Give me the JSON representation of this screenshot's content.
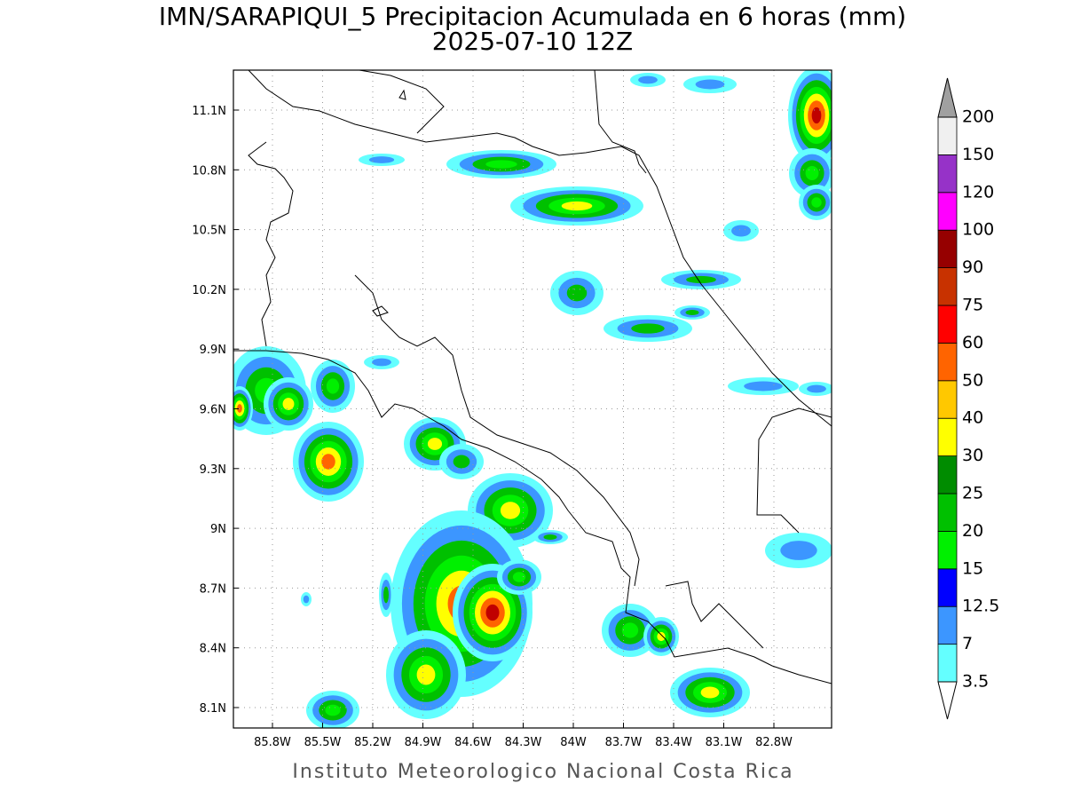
{
  "header": {
    "title": "IMN/SARAPIQUI_5 Precipitacion Acumulada en 6 horas (mm)",
    "subtitle": "2025-07-10 12Z"
  },
  "map": {
    "lon_labels": [
      "85.8W",
      "85.5W",
      "85.2W",
      "84.9W",
      "84.6W",
      "84.3W",
      "84W",
      "83.7W",
      "83.4W",
      "83.1W",
      "82.8W"
    ],
    "lat_labels": [
      "11.1N",
      "10.8N",
      "10.5N",
      "10.2N",
      "9.9N",
      "9.6N",
      "9.3N",
      "9N",
      "8.7N",
      "8.4N",
      "8.1N"
    ]
  },
  "colorbar": {
    "levels": [
      3.5,
      7,
      12.5,
      15,
      20,
      25,
      30,
      40,
      50,
      60,
      75,
      90,
      100,
      120,
      150,
      200
    ],
    "colors": [
      "#64ffff",
      "#3c96ff",
      "#0000ff",
      "#00f000",
      "#00c000",
      "#008c00",
      "#ffff00",
      "#ffc800",
      "#ff6400",
      "#ff0000",
      "#c83200",
      "#960000",
      "#ff00ff",
      "#9632c8",
      "#f0f0f0"
    ],
    "over_color": "#a0a0a0",
    "under_color": "#ffffff"
  },
  "footer": "Instituto Meteorologico Nacional Costa Rica"
}
